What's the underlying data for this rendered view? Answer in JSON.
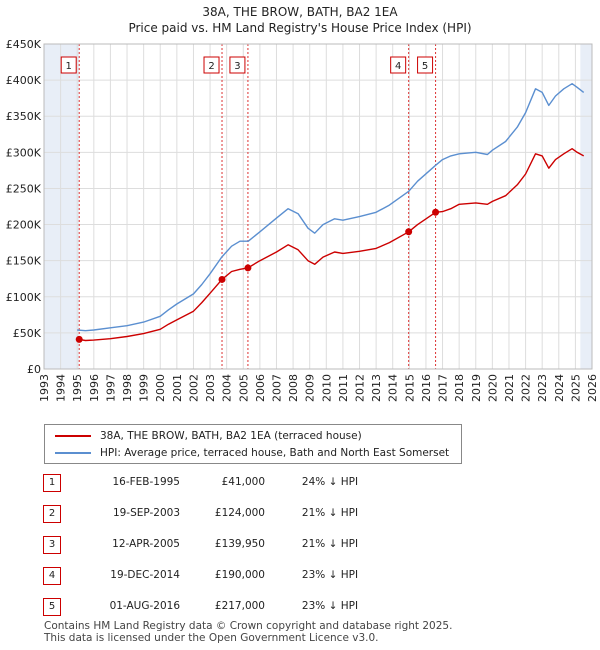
{
  "header": {
    "title": "38A, THE BROW, BATH, BA2 1EA",
    "subtitle": "Price paid vs. HM Land Registry's House Price Index (HPI)"
  },
  "legend": {
    "property_label": "38A, THE BROW, BATH, BA2 1EA (terraced house)",
    "hpi_label": "HPI: Average price, terraced house, Bath and North East Somerset"
  },
  "sales": [
    {
      "num": "1",
      "date": "16-FEB-1995",
      "price": "£41,000",
      "hpi": "24% ↓ HPI"
    },
    {
      "num": "2",
      "date": "19-SEP-2003",
      "price": "£124,000",
      "hpi": "21% ↓ HPI"
    },
    {
      "num": "3",
      "date": "12-APR-2005",
      "price": "£139,950",
      "hpi": "21% ↓ HPI"
    },
    {
      "num": "4",
      "date": "19-DEC-2014",
      "price": "£190,000",
      "hpi": "23% ↓ HPI"
    },
    {
      "num": "5",
      "date": "01-AUG-2016",
      "price": "£217,000",
      "hpi": "23% ↓ HPI"
    }
  ],
  "footer": {
    "line1": "Contains HM Land Registry data © Crown copyright and database right 2025.",
    "line2": "This data is licensed under the Open Government Licence v3.0."
  },
  "colors": {
    "property": "#cc0000",
    "hpi": "#5b8fd0",
    "marker_line": "#dd3333",
    "grid": "#dddddd",
    "shade": "#e8eef7"
  },
  "chart_data": {
    "type": "line",
    "title": "38A, THE BROW, BATH, BA2 1EA",
    "subtitle": "Price paid vs. HM Land Registry's House Price Index (HPI)",
    "xlabel": "",
    "ylabel": "",
    "xlim": [
      1993,
      2026
    ],
    "ylim": [
      0,
      450000
    ],
    "x_ticks": [
      "1993",
      "1994",
      "1995",
      "1996",
      "1997",
      "1998",
      "1999",
      "2000",
      "2001",
      "2002",
      "2003",
      "2004",
      "2005",
      "2006",
      "2007",
      "2008",
      "2009",
      "2010",
      "2011",
      "2012",
      "2013",
      "2014",
      "2015",
      "2016",
      "2017",
      "2018",
      "2019",
      "2020",
      "2021",
      "2022",
      "2023",
      "2024",
      "2025",
      "2026"
    ],
    "y_ticks": [
      {
        "value": 0,
        "label": "£0"
      },
      {
        "value": 50000,
        "label": "£50K"
      },
      {
        "value": 100000,
        "label": "£100K"
      },
      {
        "value": 150000,
        "label": "£150K"
      },
      {
        "value": 200000,
        "label": "£200K"
      },
      {
        "value": 250000,
        "label": "£250K"
      },
      {
        "value": 300000,
        "label": "£300K"
      },
      {
        "value": 350000,
        "label": "£350K"
      },
      {
        "value": 400000,
        "label": "£400K"
      },
      {
        "value": 450000,
        "label": "£450K"
      }
    ],
    "grid": true,
    "shaded_ranges": [
      [
        1993,
        1995.12
      ],
      [
        2025.3,
        2026
      ]
    ],
    "series": [
      {
        "name": "38A, THE BROW, BATH, BA2 1EA (terraced house)",
        "color": "#cc0000",
        "points": [
          [
            1995.12,
            41000
          ],
          [
            1995.5,
            39500
          ],
          [
            1996,
            40000
          ],
          [
            1997,
            42000
          ],
          [
            1998,
            45000
          ],
          [
            1999,
            49000
          ],
          [
            2000,
            55000
          ],
          [
            2000.5,
            62000
          ],
          [
            2001,
            68000
          ],
          [
            2002,
            80000
          ],
          [
            2002.5,
            92000
          ],
          [
            2003,
            105000
          ],
          [
            2003.72,
            124000
          ],
          [
            2004.3,
            135000
          ],
          [
            2004.8,
            138000
          ],
          [
            2005.28,
            139950
          ],
          [
            2006,
            150000
          ],
          [
            2007,
            162000
          ],
          [
            2007.7,
            172000
          ],
          [
            2008.3,
            165000
          ],
          [
            2008.9,
            150000
          ],
          [
            2009.3,
            145000
          ],
          [
            2009.8,
            155000
          ],
          [
            2010.5,
            162000
          ],
          [
            2011,
            160000
          ],
          [
            2012,
            163000
          ],
          [
            2013,
            167000
          ],
          [
            2013.8,
            175000
          ],
          [
            2014.96,
            190000
          ],
          [
            2015.5,
            200000
          ],
          [
            2016.58,
            217000
          ],
          [
            2017,
            218000
          ],
          [
            2017.5,
            222000
          ],
          [
            2018,
            228000
          ],
          [
            2019,
            230000
          ],
          [
            2019.7,
            228000
          ],
          [
            2020,
            232000
          ],
          [
            2020.8,
            240000
          ],
          [
            2021.5,
            255000
          ],
          [
            2022,
            270000
          ],
          [
            2022.6,
            298000
          ],
          [
            2023,
            295000
          ],
          [
            2023.4,
            278000
          ],
          [
            2023.8,
            290000
          ],
          [
            2024.3,
            298000
          ],
          [
            2024.8,
            305000
          ],
          [
            2025.1,
            300000
          ],
          [
            2025.5,
            295000
          ]
        ]
      },
      {
        "name": "HPI: Average price, terraced house, Bath and North East Somerset",
        "color": "#5b8fd0",
        "points": [
          [
            1995,
            54000
          ],
          [
            1995.5,
            53000
          ],
          [
            1996,
            54000
          ],
          [
            1997,
            57000
          ],
          [
            1998,
            60000
          ],
          [
            1999,
            65000
          ],
          [
            2000,
            73000
          ],
          [
            2000.5,
            82000
          ],
          [
            2001,
            90000
          ],
          [
            2002,
            104000
          ],
          [
            2002.5,
            117000
          ],
          [
            2003,
            132000
          ],
          [
            2003.7,
            155000
          ],
          [
            2004.3,
            170000
          ],
          [
            2004.8,
            177000
          ],
          [
            2005.3,
            177000
          ],
          [
            2006,
            190000
          ],
          [
            2007,
            209000
          ],
          [
            2007.7,
            222000
          ],
          [
            2008.3,
            215000
          ],
          [
            2008.9,
            195000
          ],
          [
            2009.3,
            188000
          ],
          [
            2009.8,
            200000
          ],
          [
            2010.5,
            208000
          ],
          [
            2011,
            206000
          ],
          [
            2012,
            211000
          ],
          [
            2013,
            217000
          ],
          [
            2013.8,
            227000
          ],
          [
            2014.96,
            246000
          ],
          [
            2015.5,
            260000
          ],
          [
            2016.58,
            282000
          ],
          [
            2017,
            290000
          ],
          [
            2017.5,
            295000
          ],
          [
            2018,
            298000
          ],
          [
            2019,
            300000
          ],
          [
            2019.7,
            297000
          ],
          [
            2020,
            303000
          ],
          [
            2020.8,
            315000
          ],
          [
            2021.5,
            335000
          ],
          [
            2022,
            355000
          ],
          [
            2022.6,
            388000
          ],
          [
            2023,
            383000
          ],
          [
            2023.4,
            365000
          ],
          [
            2023.8,
            378000
          ],
          [
            2024.3,
            388000
          ],
          [
            2024.8,
            395000
          ],
          [
            2025.1,
            390000
          ],
          [
            2025.5,
            383000
          ]
        ]
      }
    ],
    "sale_markers": [
      {
        "label": "1",
        "x": 1995.12,
        "y": 41000
      },
      {
        "label": "2",
        "x": 2003.72,
        "y": 124000
      },
      {
        "label": "3",
        "x": 2005.28,
        "y": 139950
      },
      {
        "label": "4",
        "x": 2014.96,
        "y": 190000
      },
      {
        "label": "5",
        "x": 2016.58,
        "y": 217000
      }
    ]
  }
}
